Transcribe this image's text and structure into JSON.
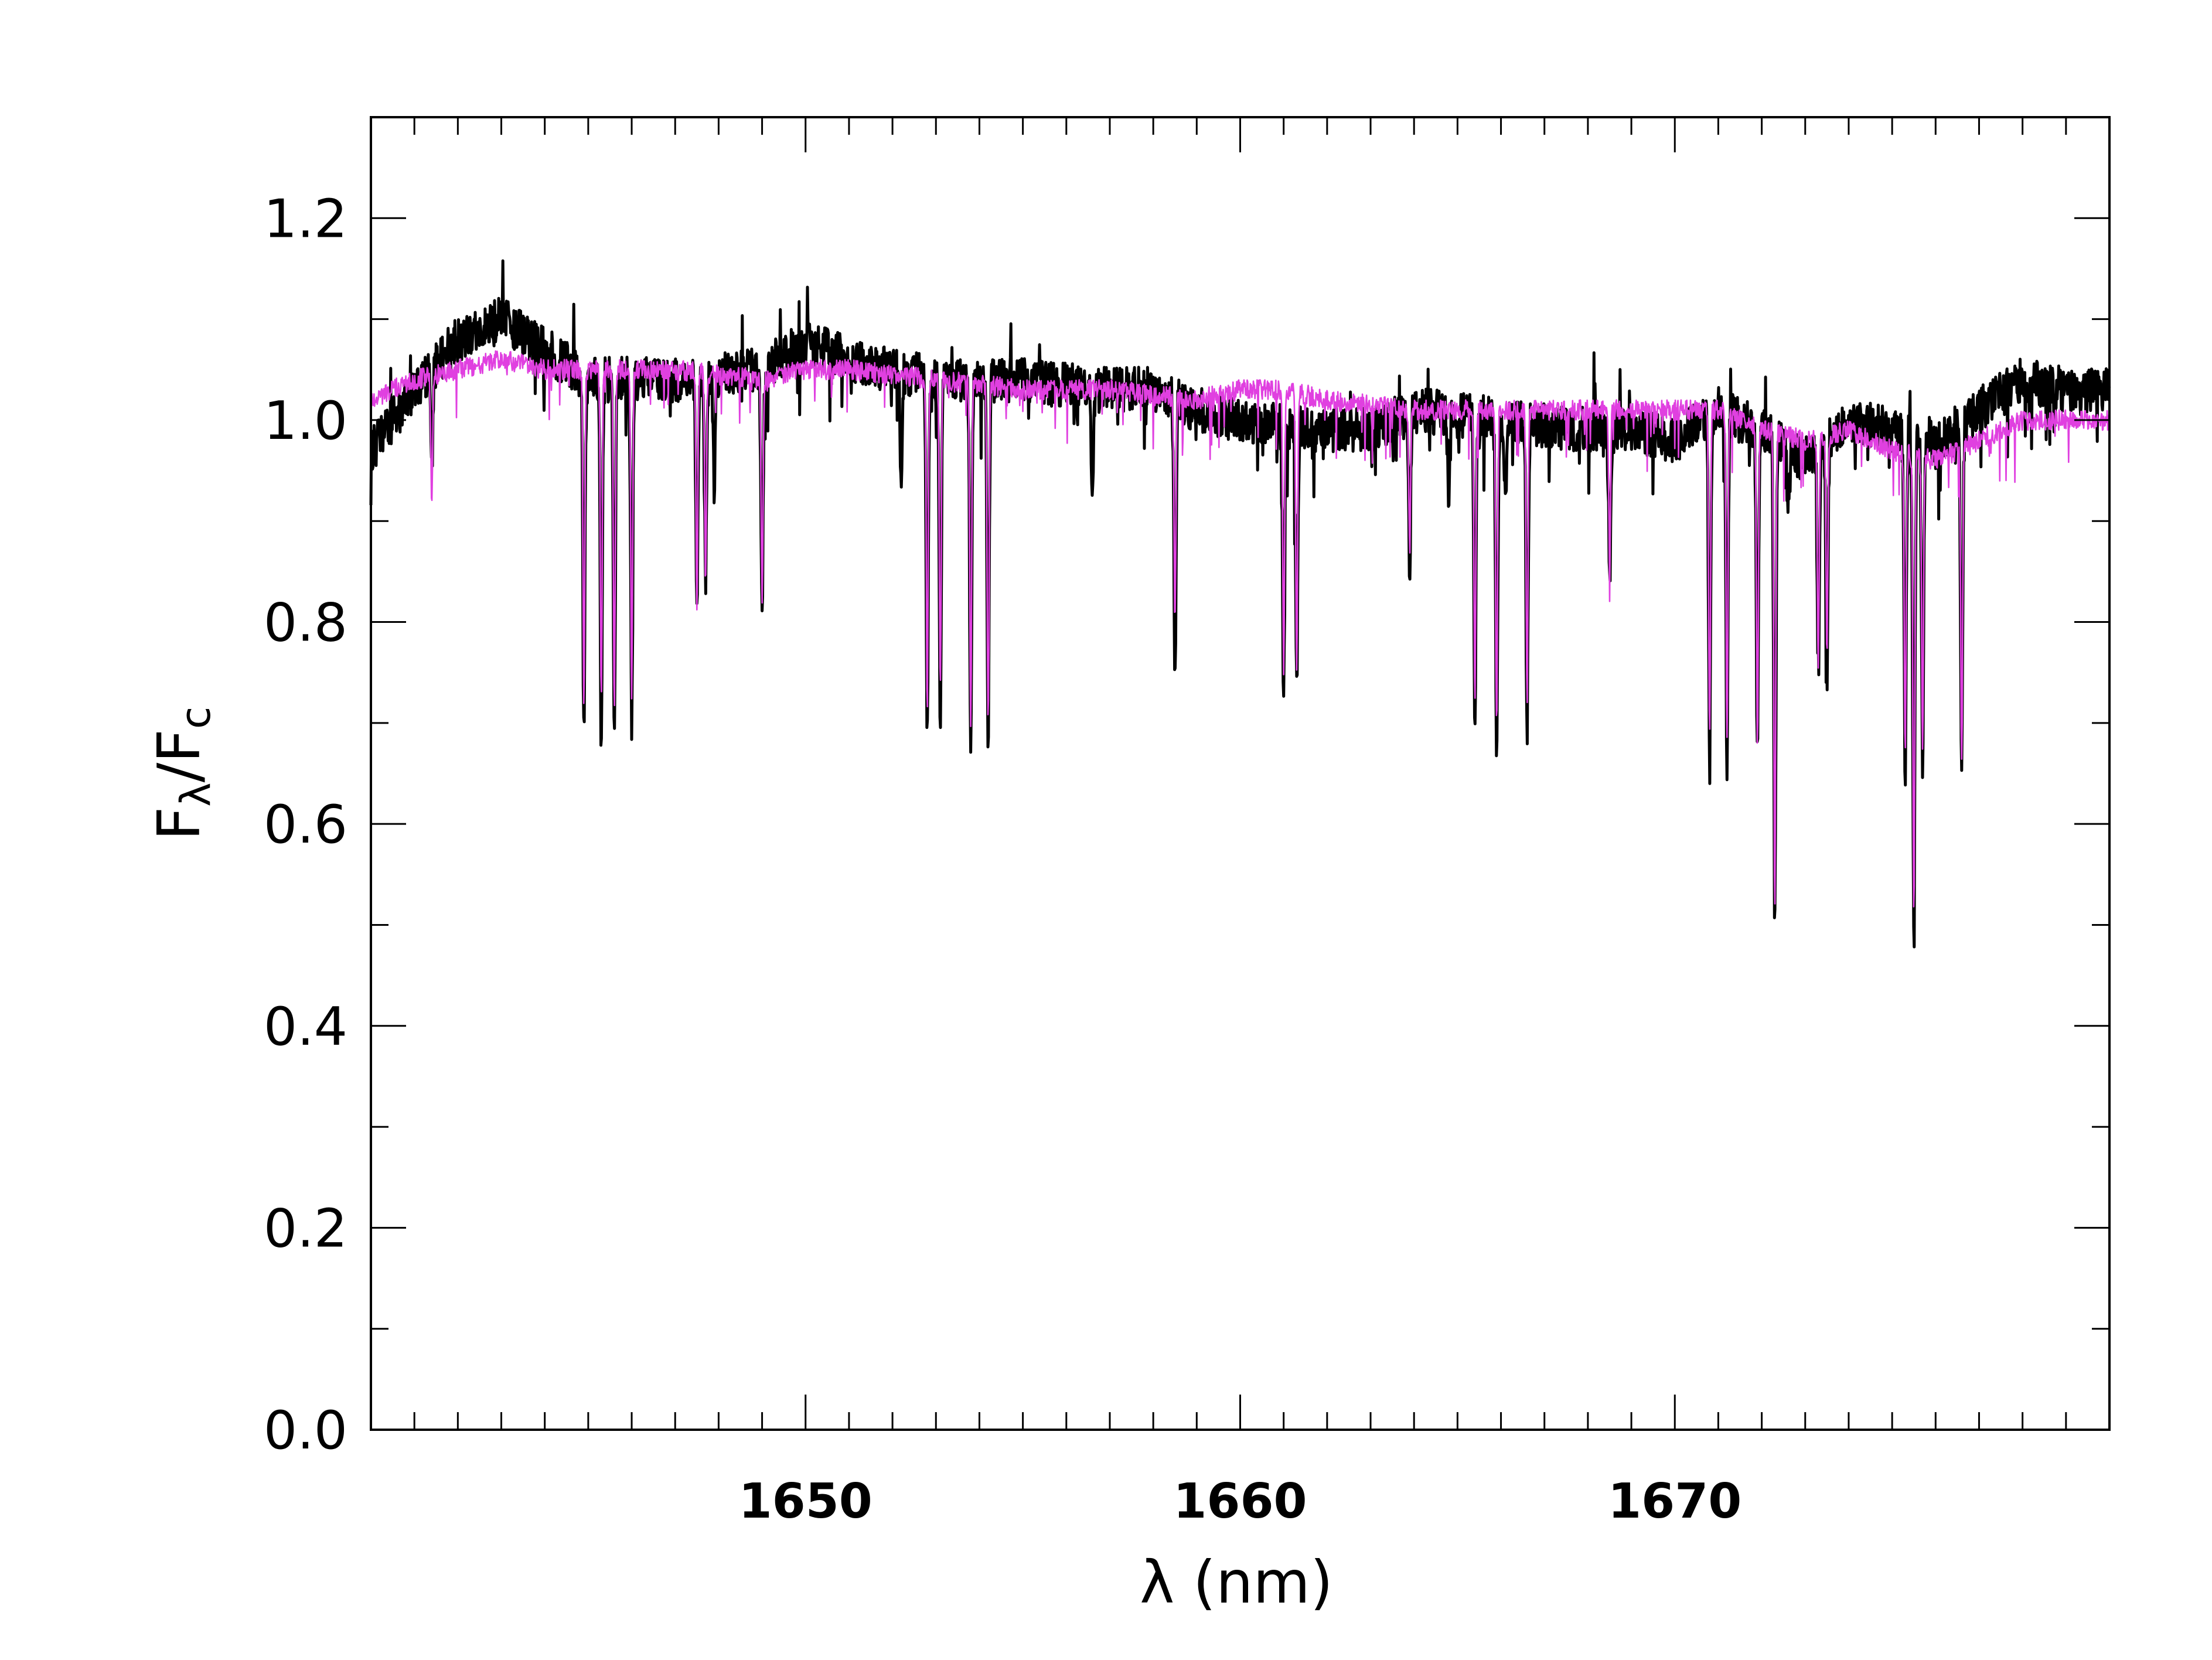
{
  "chart_data": {
    "type": "line",
    "xlabel": "λ (nm)",
    "ylabel": "Fλ/Fc",
    "ylabel_parts": {
      "base": "F",
      "sub_num": "λ",
      "sep": "/",
      "base2": "F",
      "sub_den": "c"
    },
    "xlim": [
      1640,
      1680
    ],
    "ylim": [
      0.0,
      1.3
    ],
    "x_ticks": [
      1650,
      1660,
      1670
    ],
    "x_tick_labels": [
      "1650",
      "1660",
      "1670"
    ],
    "y_ticks": [
      0.0,
      0.2,
      0.4,
      0.6,
      0.8,
      1.0,
      1.2
    ],
    "y_tick_labels": [
      "0.0",
      "0.2",
      "0.4",
      "0.6",
      "0.8",
      "1.0",
      "1.2"
    ],
    "grid": false,
    "legend": "none",
    "series": [
      {
        "color": "#000000",
        "continuum": [
          [
            1640,
            0.97
          ],
          [
            1641,
            1.03
          ],
          [
            1642,
            1.08
          ],
          [
            1643,
            1.1
          ],
          [
            1644,
            1.07
          ],
          [
            1645,
            1.04
          ],
          [
            1647,
            1.04
          ],
          [
            1649,
            1.05
          ],
          [
            1650,
            1.08
          ],
          [
            1651,
            1.06
          ],
          [
            1653,
            1.04
          ],
          [
            1655,
            1.04
          ],
          [
            1657,
            1.03
          ],
          [
            1658,
            1.03
          ],
          [
            1659,
            1.01
          ],
          [
            1660,
            1.0
          ],
          [
            1662,
            0.99
          ],
          [
            1663,
            0.99
          ],
          [
            1664,
            1.01
          ],
          [
            1666,
            1.0
          ],
          [
            1668,
            0.99
          ],
          [
            1669,
            0.99
          ],
          [
            1670,
            0.98
          ],
          [
            1671,
            1.01
          ],
          [
            1672,
            0.99
          ],
          [
            1673,
            0.96
          ],
          [
            1674,
            1.0
          ],
          [
            1675,
            0.99
          ],
          [
            1676,
            0.98
          ],
          [
            1677,
            1.01
          ],
          [
            1678,
            1.04
          ],
          [
            1679,
            1.03
          ],
          [
            1680,
            1.03
          ]
        ],
        "lines": [
          [
            1641.4,
            0.95
          ],
          [
            1644.9,
            0.69
          ],
          [
            1645.3,
            0.68
          ],
          [
            1645.6,
            0.69
          ],
          [
            1646.0,
            0.71
          ],
          [
            1647.5,
            0.8
          ],
          [
            1647.7,
            0.83
          ],
          [
            1647.9,
            0.93
          ],
          [
            1649.0,
            0.8
          ],
          [
            1652.2,
            0.92
          ],
          [
            1652.8,
            0.69
          ],
          [
            1653.1,
            0.71
          ],
          [
            1653.8,
            0.68
          ],
          [
            1654.2,
            0.67
          ],
          [
            1656.6,
            0.92
          ],
          [
            1658.5,
            0.76
          ],
          [
            1661.0,
            0.72
          ],
          [
            1661.3,
            0.73
          ],
          [
            1663.9,
            0.86
          ],
          [
            1664.8,
            0.92
          ],
          [
            1665.4,
            0.69
          ],
          [
            1665.9,
            0.68
          ],
          [
            1666.1,
            0.92
          ],
          [
            1666.6,
            0.69
          ],
          [
            1668.5,
            0.84
          ],
          [
            1670.8,
            0.66
          ],
          [
            1671.2,
            0.66
          ],
          [
            1671.9,
            0.66
          ],
          [
            1672.3,
            0.49
          ],
          [
            1672.6,
            0.92
          ],
          [
            1673.3,
            0.74
          ],
          [
            1673.5,
            0.75
          ],
          [
            1675.3,
            0.65
          ],
          [
            1675.5,
            0.47
          ],
          [
            1675.7,
            0.65
          ],
          [
            1676.6,
            0.64
          ]
        ]
      },
      {
        "color": "#e040e0",
        "continuum": [
          [
            1640,
            1.02
          ],
          [
            1641,
            1.04
          ],
          [
            1642,
            1.05
          ],
          [
            1643,
            1.06
          ],
          [
            1644,
            1.05
          ],
          [
            1645,
            1.05
          ],
          [
            1647,
            1.05
          ],
          [
            1649,
            1.04
          ],
          [
            1650,
            1.05
          ],
          [
            1651,
            1.05
          ],
          [
            1653,
            1.04
          ],
          [
            1655,
            1.03
          ],
          [
            1657,
            1.03
          ],
          [
            1659,
            1.02
          ],
          [
            1660,
            1.03
          ],
          [
            1661,
            1.03
          ],
          [
            1662,
            1.02
          ],
          [
            1664,
            1.01
          ],
          [
            1666,
            1.01
          ],
          [
            1668,
            1.01
          ],
          [
            1669,
            1.01
          ],
          [
            1670,
            1.01
          ],
          [
            1671,
            1.01
          ],
          [
            1672,
            0.99
          ],
          [
            1673,
            0.98
          ],
          [
            1674,
            0.99
          ],
          [
            1675,
            0.97
          ],
          [
            1676,
            0.96
          ],
          [
            1677,
            0.98
          ],
          [
            1678,
            1.0
          ],
          [
            1680,
            1.0
          ]
        ],
        "lines": [
          [
            1641.4,
            0.92
          ],
          [
            1644.9,
            0.72
          ],
          [
            1645.3,
            0.72
          ],
          [
            1645.6,
            0.72
          ],
          [
            1646.0,
            0.73
          ],
          [
            1647.5,
            0.82
          ],
          [
            1647.7,
            0.84
          ],
          [
            1649.0,
            0.82
          ],
          [
            1652.8,
            0.72
          ],
          [
            1653.1,
            0.74
          ],
          [
            1653.8,
            0.7
          ],
          [
            1654.2,
            0.7
          ],
          [
            1658.5,
            0.8
          ],
          [
            1661.0,
            0.75
          ],
          [
            1661.3,
            0.75
          ],
          [
            1663.9,
            0.87
          ],
          [
            1665.4,
            0.72
          ],
          [
            1665.9,
            0.7
          ],
          [
            1666.6,
            0.72
          ],
          [
            1668.5,
            0.86
          ],
          [
            1670.8,
            0.68
          ],
          [
            1671.2,
            0.68
          ],
          [
            1671.9,
            0.68
          ],
          [
            1672.3,
            0.52
          ],
          [
            1673.3,
            0.76
          ],
          [
            1673.5,
            0.77
          ],
          [
            1675.3,
            0.67
          ],
          [
            1675.5,
            0.5
          ],
          [
            1675.7,
            0.67
          ],
          [
            1676.6,
            0.66
          ]
        ]
      }
    ]
  }
}
